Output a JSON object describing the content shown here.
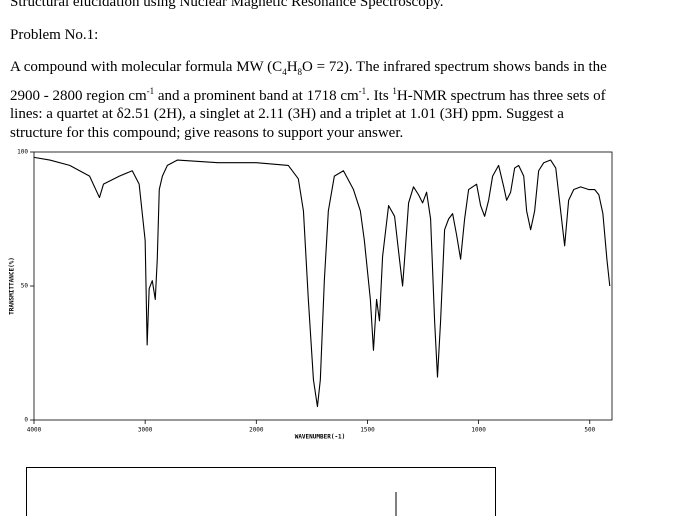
{
  "header": {
    "title": "Structural elucidation using Nuclear Magnetic Resonance Spectroscopy."
  },
  "problem": {
    "label": "Problem No.1:",
    "parts": [
      "A compound with molecular formula MW (C",
      "4",
      "H",
      "8",
      "O = 72). The infrared spectrum shows bands in the 2900 - 2800 region cm",
      "-1",
      " and a prominent band at 1718 cm",
      "-1",
      ".  Its ",
      "1",
      "H-NMR spectrum has three sets of lines: a quartet at δ2.51 (2H), a singlet at 2.11 (3H) and a triplet at 1.01 (3H) ppm. Suggest a structure for this compound; give reasons to support your answer."
    ]
  },
  "chart_data": {
    "type": "line",
    "color": "#000000",
    "xlabel": "WAVENUMBER(-1)",
    "ylabel": "TRANSMITTANCE(%)",
    "x": [
      4000,
      3857,
      3679,
      3500,
      3411,
      3375,
      3232,
      3116,
      3054,
      3000,
      2982,
      2964,
      2936,
      2909,
      2891,
      2873,
      2845,
      2800,
      2709,
      2345,
      2000,
      1856,
      1811,
      1788,
      1766,
      1743,
      1725,
      1712,
      1694,
      1676,
      1649,
      1608,
      1563,
      1532,
      1514,
      1487,
      1473,
      1459,
      1446,
      1432,
      1405,
      1378,
      1356,
      1342,
      1333,
      1315,
      1293,
      1270,
      1252,
      1234,
      1216,
      1198,
      1185,
      1171,
      1153,
      1135,
      1117,
      1099,
      1081,
      1063,
      1045,
      1009,
      991,
      973,
      955,
      937,
      910,
      887,
      874,
      856,
      838,
      820,
      797,
      784,
      766,
      748,
      730,
      707,
      676,
      653,
      631,
      613,
      595,
      572,
      541,
      505,
      478,
      459,
      441,
      423,
      410
    ],
    "values": [
      98,
      97,
      95,
      91,
      83,
      88,
      91,
      93,
      88,
      67,
      28,
      49,
      52,
      45,
      60,
      86,
      91,
      95,
      97,
      96,
      96,
      95,
      90,
      78,
      45,
      15,
      5,
      15,
      52,
      78,
      91,
      93,
      86,
      78,
      67,
      45,
      26,
      45,
      37,
      61,
      80,
      76,
      60,
      50,
      60,
      81,
      87,
      84,
      81,
      85,
      75,
      37,
      16,
      37,
      71,
      75,
      77,
      69,
      60,
      75,
      86,
      88,
      80,
      76,
      82,
      91,
      95,
      87,
      82,
      85,
      94,
      95,
      91,
      78,
      71,
      78,
      93,
      96,
      97,
      94,
      78,
      65,
      82,
      86,
      87,
      86,
      86,
      84,
      77,
      60,
      50
    ],
    "xlim": [
      4000,
      400
    ],
    "xticks": [
      4000,
      3000,
      2000,
      1500,
      1000,
      500
    ],
    "ylim": [
      0,
      100
    ],
    "yticks": [
      0,
      50,
      100
    ]
  }
}
